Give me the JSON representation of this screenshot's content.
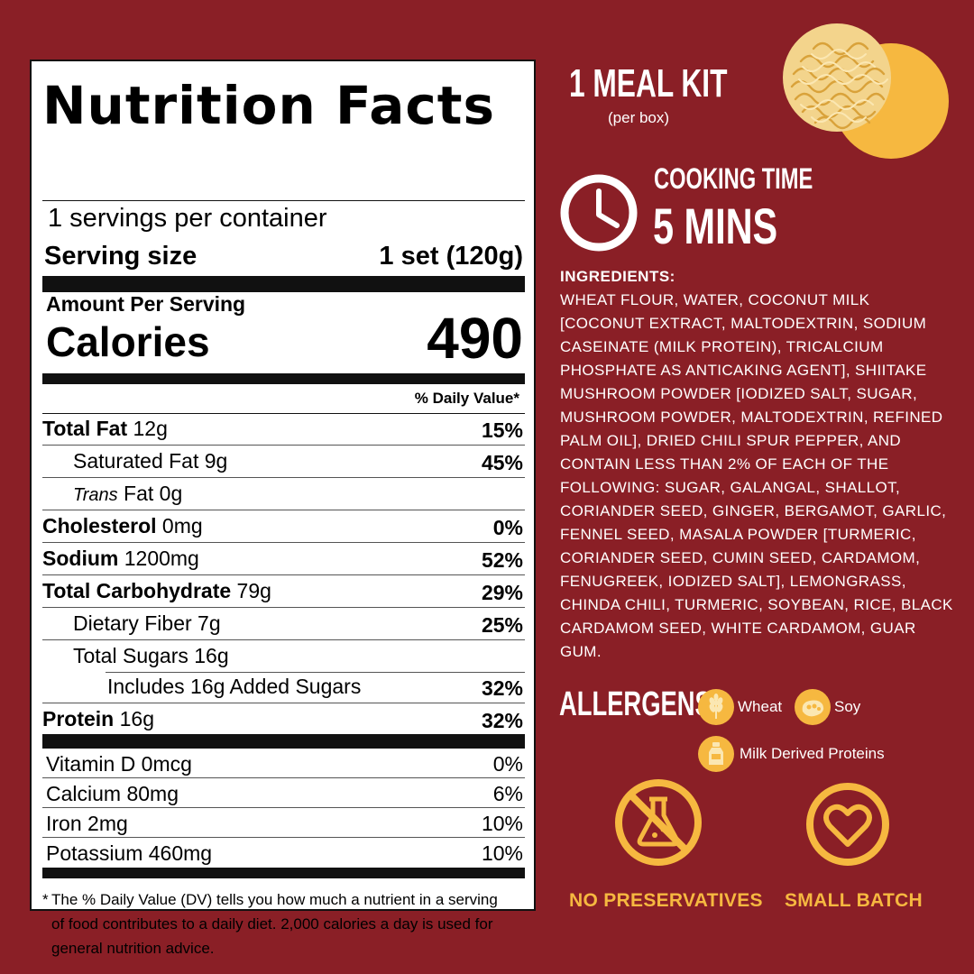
{
  "label": {
    "title": "Nutrition Facts",
    "servings": "1 servings per container",
    "serving_size_label": "Serving size",
    "serving_size_value": "1 set (120g)",
    "amount_per_serving": "Amount Per Serving",
    "calories_label": "Calories",
    "calories_value": "490",
    "dv_header": "% Daily Value*",
    "nutrients": [
      {
        "name": "Total Fat",
        "amount": "12g",
        "pct": "15%"
      },
      {
        "name": "Saturated Fat",
        "amount": "9g",
        "pct": "45%"
      },
      {
        "name": "Trans",
        "amount": "Fat 0g",
        "pct": ""
      },
      {
        "name": "Cholesterol",
        "amount": "0mg",
        "pct": "0%"
      },
      {
        "name": "Sodium",
        "amount": "1200mg",
        "pct": "52%"
      },
      {
        "name": "Total Carbohydrate",
        "amount": "79g",
        "pct": "29%"
      },
      {
        "name": "Dietary Fiber",
        "amount": "7g",
        "pct": "25%"
      },
      {
        "name": "Total Sugars",
        "amount": "16g",
        "pct": ""
      },
      {
        "name": "Includes 16g Added Sugars",
        "amount": "",
        "pct": "32%"
      },
      {
        "name": "Protein",
        "amount": "16g",
        "pct": "32%"
      }
    ],
    "vitamins": [
      {
        "name": "Vitamin D 0mcg",
        "pct": "0%"
      },
      {
        "name": "Calcium 80mg",
        "pct": "6%"
      },
      {
        "name": "Iron 2mg",
        "pct": "10%"
      },
      {
        "name": "Potassium 460mg",
        "pct": "10%"
      }
    ],
    "footnote_star": "*",
    "footnote": "The % Daily Value (DV) tells you how much a nutrient in a serving of food contributes to a daily diet. 2,000 calories a day is used for general nutrition advice."
  },
  "meal_kit": {
    "title": "1 MEAL KIT",
    "subtitle": "(per box)"
  },
  "cooking": {
    "label": "COOKING TIME",
    "value": "5 MINS"
  },
  "ingredients": {
    "title": "INGREDIENTS:",
    "text": "WHEAT FLOUR, WATER, COCONUT MILK [COCONUT EXTRACT, MALTODEXTRIN, SODIUM CASEINATE (MILK PROTEIN), TRICALCIUM PHOSPHATE AS ANTICAKING AGENT], SHIITAKE MUSHROOM POWDER [IODIZED SALT, SUGAR, MUSHROOM POWDER, MALTODEXTRIN, REFINED PALM OIL], DRIED CHILI SPUR PEPPER, AND CONTAIN LESS THAN 2% OF EACH OF THE FOLLOWING: SUGAR, GALANGAL, SHALLOT, CORIANDER SEED, GINGER, BERGAMOT, GARLIC, FENNEL SEED, MASALA POWDER [TURMERIC, CORIANDER SEED, CUMIN SEED, CARDAMOM, FENUGREEK, IODIZED SALT], LEMONGRASS, CHINDA CHILI, TURMERIC, SOYBEAN, RICE, BLACK CARDAMOM SEED, WHITE CARDAMOM, GUAR GUM."
  },
  "allergens": {
    "title": "ALLERGENS",
    "items": [
      {
        "label": "Wheat",
        "icon": "wheat-icon"
      },
      {
        "label": "Soy",
        "icon": "soybean-icon"
      },
      {
        "label": "Milk Derived Proteins",
        "icon": "milk-bottle-icon"
      }
    ]
  },
  "badges": {
    "no_preservatives": "NO PRESERVATIVES",
    "small_batch": "SMALL BATCH"
  },
  "colors": {
    "background": "#8a1f26",
    "accent": "#f6b840",
    "label_bg": "#ffffff",
    "text": "#ffffff"
  }
}
